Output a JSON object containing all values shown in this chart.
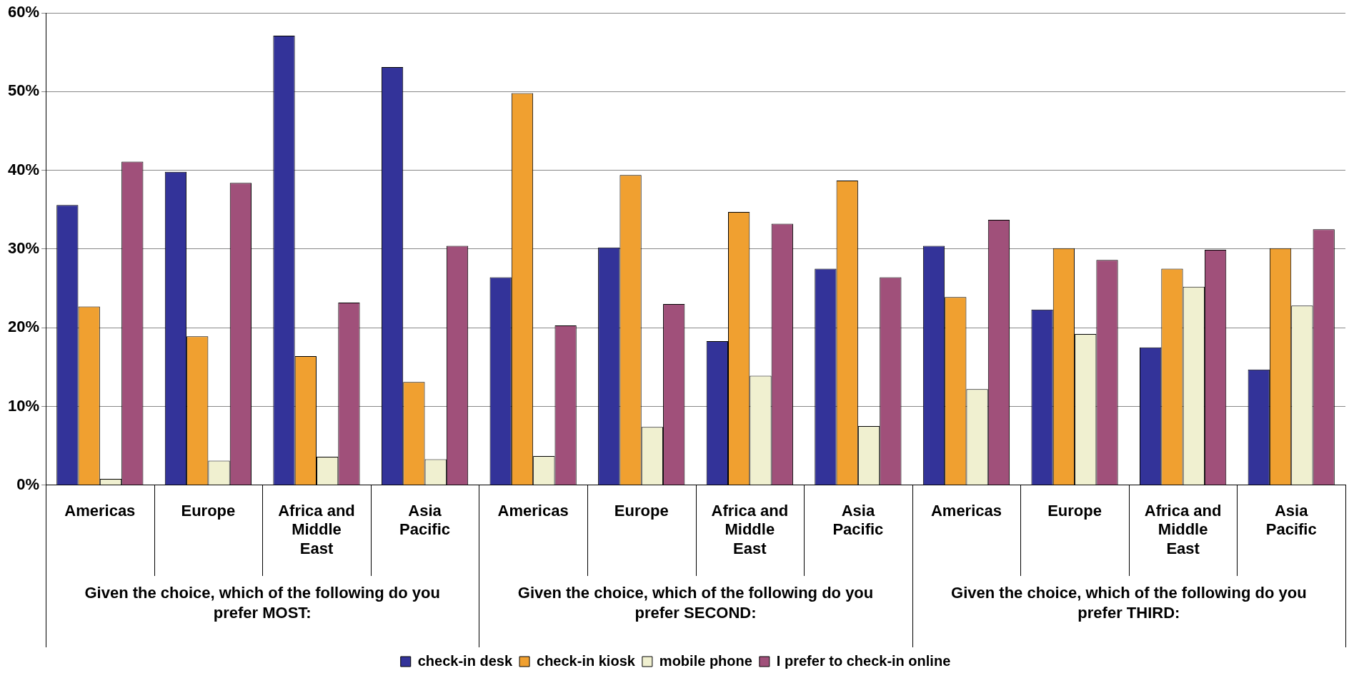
{
  "chart_data": {
    "type": "bar",
    "categories": [
      "Americas",
      "Europe",
      "Africa and Middle East",
      "Asia Pacific",
      "Americas",
      "Europe",
      "Africa and Middle East",
      "Asia Pacific",
      "Americas",
      "Europe",
      "Africa and Middle East",
      "Asia Pacific"
    ],
    "series": [
      {
        "name": "check-in desk",
        "color": "#333399",
        "values": [
          35.6,
          39.8,
          57.1,
          53.1,
          26.4,
          30.2,
          18.3,
          27.5,
          30.4,
          22.3,
          17.5,
          14.7
        ]
      },
      {
        "name": "check-in kiosk",
        "color": "#f0a030",
        "values": [
          22.7,
          18.9,
          16.4,
          13.1,
          49.8,
          39.4,
          34.7,
          38.7,
          23.9,
          30.1,
          27.5,
          30.1
        ]
      },
      {
        "name": "mobile phone",
        "color": "#f0f0d0",
        "values": [
          0.8,
          3.1,
          3.6,
          3.3,
          3.7,
          7.4,
          13.9,
          7.5,
          12.2,
          19.2,
          25.2,
          22.8
        ]
      },
      {
        "name": "I prefer to check-in online",
        "color": "#a0507a",
        "values": [
          41.1,
          38.4,
          23.2,
          30.4,
          20.3,
          23.0,
          33.2,
          26.4,
          33.7,
          28.6,
          29.9,
          32.5
        ]
      }
    ],
    "annotations": [
      "Given the choice, which of the following do you prefer MOST:",
      "Given the choice, which of the following do you prefer SECOND:",
      "Given the choice, which of the following do you prefer THIRD:"
    ],
    "ylim": [
      0,
      60
    ],
    "yticks": [
      {
        "value": 0,
        "label": "0%"
      },
      {
        "value": 10,
        "label": "10%"
      },
      {
        "value": 20,
        "label": "20%"
      },
      {
        "value": 30,
        "label": "30%"
      },
      {
        "value": 40,
        "label": "40%"
      },
      {
        "value": 50,
        "label": "50%"
      },
      {
        "value": 60,
        "label": "60%"
      }
    ],
    "grid": "y",
    "legend": "bottom"
  }
}
